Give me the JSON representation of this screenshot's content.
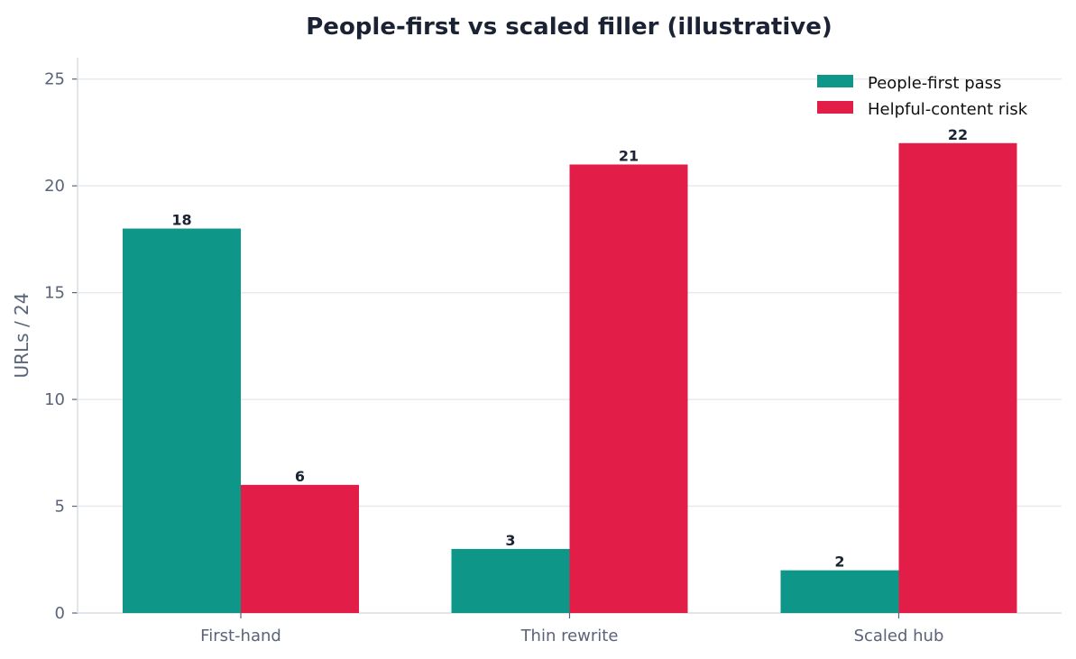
{
  "chart_data": {
    "type": "bar",
    "title": "People-first vs scaled filler (illustrative)",
    "xlabel": "",
    "ylabel": "URLs / 24",
    "ylim": [
      0,
      26
    ],
    "yticks": [
      0,
      5,
      10,
      15,
      20,
      25
    ],
    "categories": [
      "First-hand",
      "Thin rewrite",
      "Scaled hub"
    ],
    "series": [
      {
        "name": "People-first pass",
        "values": [
          18,
          3,
          2
        ],
        "color": "#0e9688"
      },
      {
        "name": "Helpful-content risk",
        "values": [
          6,
          21,
          22
        ],
        "color": "#e21e48"
      }
    ],
    "grid": true,
    "legend_position": "top-right"
  }
}
